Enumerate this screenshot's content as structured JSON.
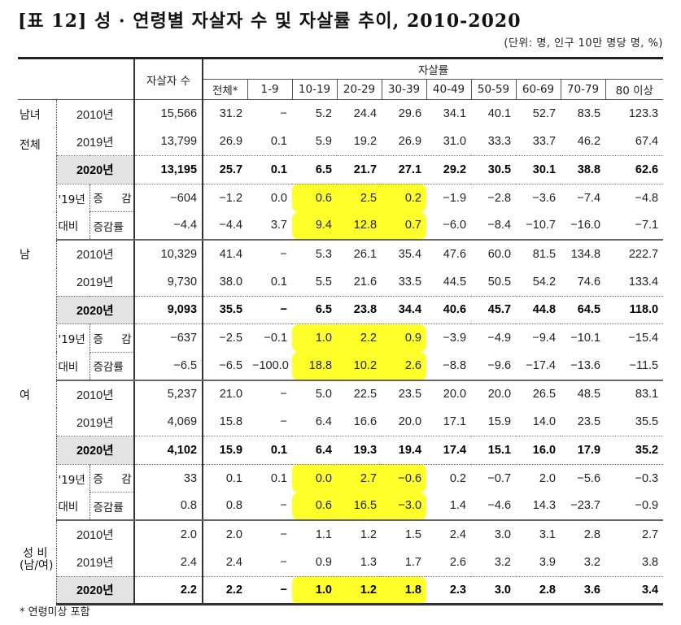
{
  "title": "[표 12] 성 · 연령별 자살자 수 및 자살률 추이, 2010-2020",
  "unit": "(단위: 명, 인구 10만 명당 명, %)",
  "header": {
    "count_label": "자살자 수",
    "rate_label": "자살률",
    "age_columns": [
      "전체*",
      "1-9",
      "10-19",
      "20-29",
      "30-39",
      "40-49",
      "50-59",
      "60-69",
      "70-79",
      "80 이상"
    ]
  },
  "groups": [
    {
      "label": "남녀\n전체",
      "label_line1": "남녀",
      "label_line2": "전체",
      "rows": [
        {
          "label": "2010년",
          "count": "15,566",
          "rates": [
            "31.2",
            "-",
            "5.2",
            "24.4",
            "29.6",
            "34.1",
            "40.1",
            "52.7",
            "83.5",
            "123.3"
          ]
        },
        {
          "label": "2019년",
          "count": "13,799",
          "rates": [
            "26.9",
            "0.1",
            "5.9",
            "19.2",
            "26.9",
            "31.0",
            "33.3",
            "33.7",
            "46.2",
            "67.4"
          ]
        },
        {
          "label": "2020년",
          "count": "13,195",
          "rates": [
            "25.7",
            "0.1",
            "6.5",
            "21.7",
            "27.1",
            "29.2",
            "30.5",
            "30.1",
            "38.8",
            "62.6"
          ]
        },
        {
          "label_a": "'19년",
          "label_b": "증 감",
          "count": "-604",
          "rates": [
            "-1.2",
            "0.0",
            "0.6",
            "2.5",
            "0.2",
            "-1.9",
            "-2.8",
            "-3.6",
            "-7.4",
            "-4.8"
          ]
        },
        {
          "label_a": "대비",
          "label_b": "증감률",
          "count": "-4.4",
          "rates": [
            "-4.4",
            "3.7",
            "9.4",
            "12.8",
            "0.7",
            "-6.0",
            "-8.4",
            "-10.7",
            "-16.0",
            "-7.1"
          ]
        }
      ]
    },
    {
      "label_line1": "남",
      "label_line2": "",
      "rows": [
        {
          "label": "2010년",
          "count": "10,329",
          "rates": [
            "41.4",
            "-",
            "5.3",
            "26.1",
            "35.4",
            "47.6",
            "60.0",
            "81.5",
            "134.8",
            "222.7"
          ]
        },
        {
          "label": "2019년",
          "count": "9,730",
          "rates": [
            "38.0",
            "0.1",
            "5.5",
            "21.6",
            "33.5",
            "44.5",
            "50.5",
            "54.2",
            "74.6",
            "133.4"
          ]
        },
        {
          "label": "2020년",
          "count": "9,093",
          "rates": [
            "35.5",
            "-",
            "6.5",
            "23.8",
            "34.4",
            "40.6",
            "45.7",
            "44.8",
            "64.5",
            "118.0"
          ]
        },
        {
          "label_a": "'19년",
          "label_b": "증 감",
          "count": "-637",
          "rates": [
            "-2.5",
            "-0.1",
            "1.0",
            "2.2",
            "0.9",
            "-3.9",
            "-4.9",
            "-9.4",
            "-10.1",
            "-15.4"
          ]
        },
        {
          "label_a": "대비",
          "label_b": "증감률",
          "count": "-6.5",
          "rates": [
            "-6.5",
            "-100.0",
            "18.8",
            "10.2",
            "2.6",
            "-8.8",
            "-9.6",
            "-17.4",
            "-13.6",
            "-11.5"
          ]
        }
      ]
    },
    {
      "label_line1": "여",
      "label_line2": "",
      "rows": [
        {
          "label": "2010년",
          "count": "5,237",
          "rates": [
            "21.0",
            "-",
            "5.0",
            "22.5",
            "23.5",
            "20.0",
            "20.0",
            "26.5",
            "48.5",
            "83.1"
          ]
        },
        {
          "label": "2019년",
          "count": "4,069",
          "rates": [
            "15.8",
            "-",
            "6.4",
            "16.6",
            "20.0",
            "17.1",
            "15.9",
            "14.0",
            "23.5",
            "35.5"
          ]
        },
        {
          "label": "2020년",
          "count": "4,102",
          "rates": [
            "15.9",
            "0.1",
            "6.4",
            "19.3",
            "19.4",
            "17.4",
            "15.1",
            "16.0",
            "17.9",
            "35.2"
          ]
        },
        {
          "label_a": "'19년",
          "label_b": "증 감",
          "count": "33",
          "rates": [
            "0.1",
            "0.1",
            "0.0",
            "2.7",
            "-0.6",
            "0.2",
            "-0.7",
            "2.0",
            "-5.6",
            "-0.3"
          ]
        },
        {
          "label_a": "대비",
          "label_b": "증감률",
          "count": "0.8",
          "rates": [
            "0.8",
            "-",
            "0.6",
            "16.5",
            "-3.0",
            "1.4",
            "-4.6",
            "14.3",
            "-23.7",
            "-0.9"
          ]
        }
      ]
    },
    {
      "label_line1": "성 비",
      "label_line2": "(남/여)",
      "rows": [
        {
          "label": "2010년",
          "count": "2.0",
          "rates": [
            "2.0",
            "-",
            "1.1",
            "1.2",
            "1.5",
            "2.4",
            "3.0",
            "3.1",
            "2.8",
            "2.7"
          ]
        },
        {
          "label": "2019년",
          "count": "2.4",
          "rates": [
            "2.4",
            "-",
            "0.9",
            "1.3",
            "1.7",
            "2.6",
            "3.2",
            "3.9",
            "3.2",
            "3.8"
          ]
        },
        {
          "label": "2020년",
          "count": "2.2",
          "rates": [
            "2.2",
            "-",
            "1.0",
            "1.2",
            "1.8",
            "2.3",
            "3.0",
            "2.8",
            "3.6",
            "3.4"
          ]
        }
      ]
    }
  ],
  "highlight_color": "#ffff2a",
  "footnote": "* 연령미상 포함"
}
